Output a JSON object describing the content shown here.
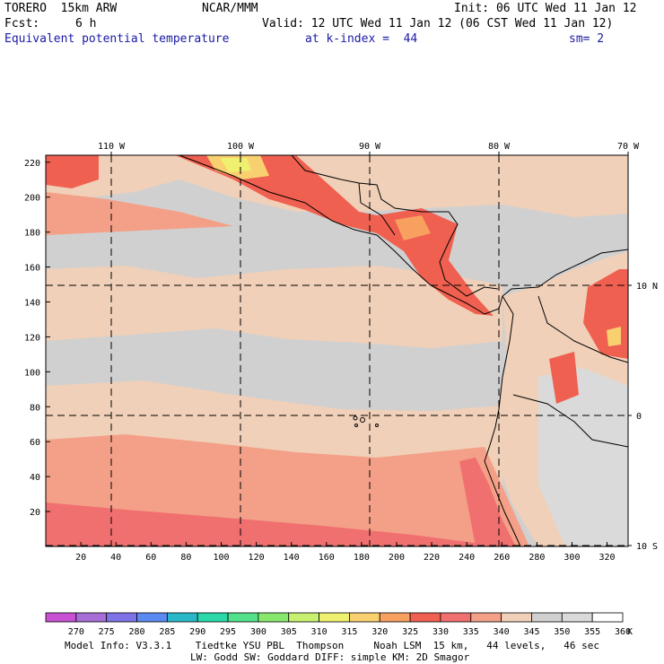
{
  "header": {
    "model": "TORERO  15km ARW",
    "org": "NCAR/MMM",
    "init": "Init: 06 UTC Wed 11 Jan 12",
    "fcst_label": "Fcst:",
    "fcst_value": "6 h",
    "valid": "Valid: 12 UTC Wed 11 Jan 12 (06 CST Wed 11 Jan 12)",
    "field": "Equivalent potential temperature",
    "level": "at k-index =  44",
    "smoothing": "sm= 2"
  },
  "map": {
    "lon_labels": [
      "110 W",
      "100 W",
      "90 W",
      "80 W",
      "70 W"
    ],
    "lat_labels": [
      "10 N",
      "0",
      "10 S"
    ],
    "x_ticks": [
      "20",
      "40",
      "60",
      "80",
      "100",
      "120",
      "140",
      "160",
      "180",
      "200",
      "220",
      "240",
      "260",
      "280",
      "300",
      "320"
    ],
    "y_ticks": [
      "20",
      "40",
      "60",
      "80",
      "100",
      "120",
      "140",
      "160",
      "180",
      "200",
      "220"
    ],
    "grid_lon": [
      -110,
      -100,
      -90,
      -80,
      -70
    ],
    "grid_lat": [
      10,
      0,
      -10
    ]
  },
  "colorbar": {
    "values": [
      "270",
      "275",
      "280",
      "285",
      "290",
      "295",
      "300",
      "305",
      "310",
      "315",
      "320",
      "325",
      "330",
      "335",
      "340",
      "345",
      "350",
      "355",
      "360"
    ],
    "unit": "K",
    "colors": [
      "#c850d2",
      "#a66ed6",
      "#7d73e6",
      "#5a8af0",
      "#2ab8c8",
      "#2ad8a8",
      "#52e08a",
      "#88e86e",
      "#c8f070",
      "#f0f070",
      "#f8d070",
      "#f8a060",
      "#f06050",
      "#f07070",
      "#f4a088",
      "#f0d0b8",
      "#d0d0d0",
      "#dadada",
      "#ffffff"
    ]
  },
  "footer": {
    "line1": "Model Info: V3.3.1    Tiedtke YSU PBL  Thompson     Noah LSM  15 km,   44 levels,   46 sec",
    "line2": "LW: Godd SW: Goddard DIFF: simple KM: 2D Smagor"
  }
}
